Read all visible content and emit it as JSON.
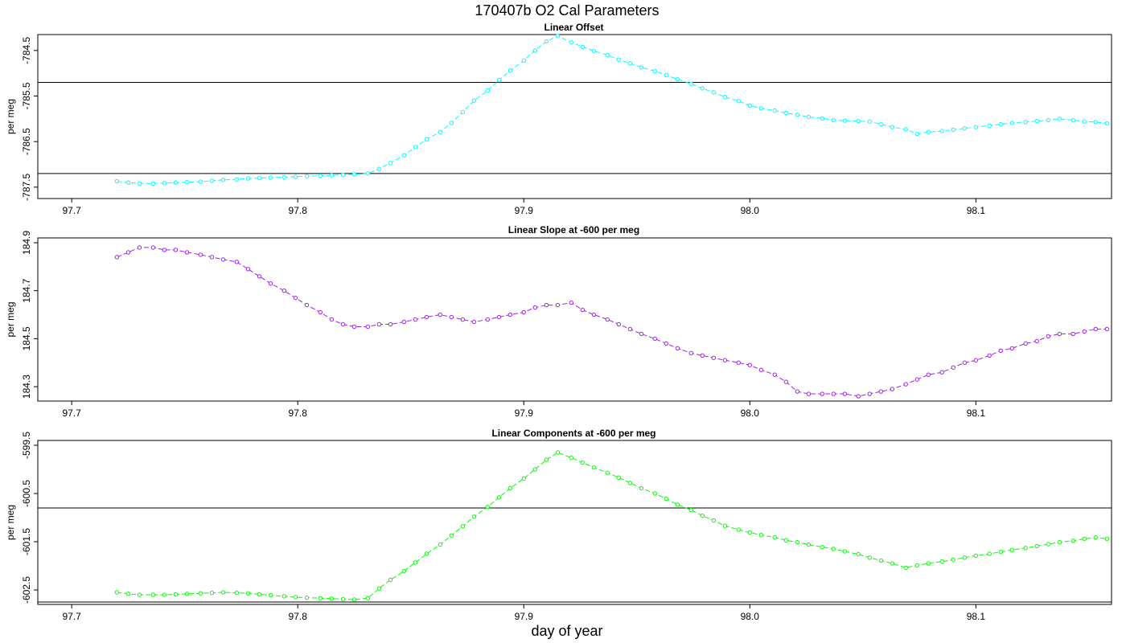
{
  "figure": {
    "title": "170407b   O2 Cal Parameters",
    "xlabel": "day of year"
  },
  "chart_data": [
    {
      "type": "line",
      "title": "Linear Offset",
      "xlabel": "",
      "ylabel": "per meg",
      "xlim": [
        97.685,
        98.16
      ],
      "ylim": [
        -787.75,
        -784.15
      ],
      "xticks": [
        97.7,
        97.8,
        97.9,
        98.0,
        98.1
      ],
      "xtick_labels": [
        "97.7",
        "97.8",
        "97.9",
        "98.0",
        "98.1"
      ],
      "yticks": [
        -784.5,
        -785.5,
        -786.5,
        -787.5
      ],
      "ytick_labels": [
        "-784.5",
        "-785.5",
        "-786.5",
        "-787.5"
      ],
      "hlines": [
        -785.2,
        -787.2
      ],
      "color": "#00ffff",
      "series": [
        {
          "x": [
            97.72,
            97.725,
            97.73,
            97.736,
            97.741,
            97.746,
            97.751,
            97.757,
            97.762,
            97.767,
            97.773,
            97.778,
            97.783,
            97.788,
            97.794,
            97.799,
            97.804,
            97.81,
            97.815,
            97.82,
            97.825,
            97.831,
            97.836,
            97.841,
            97.847,
            97.852,
            97.857,
            97.863,
            97.868,
            97.873,
            97.878,
            97.884,
            97.889,
            97.894,
            97.9,
            97.905,
            97.91,
            97.915,
            97.921,
            97.926,
            97.931,
            97.937,
            97.942,
            97.947,
            97.952,
            97.958,
            97.963,
            97.968,
            97.974,
            97.979,
            97.984,
            97.989,
            97.995,
            98.0,
            98.005,
            98.011,
            98.016,
            98.021,
            98.026,
            98.032,
            98.037,
            98.042,
            98.048,
            98.053,
            98.058,
            98.063,
            98.069,
            98.074,
            98.079,
            98.085,
            98.09,
            98.095,
            98.1,
            98.106,
            98.111,
            98.116,
            98.122,
            98.127,
            98.132,
            98.137,
            98.143,
            98.148,
            98.153,
            98.158
          ],
          "y": [
            -787.37,
            -787.4,
            -787.42,
            -787.42,
            -787.41,
            -787.4,
            -787.39,
            -787.38,
            -787.36,
            -787.34,
            -787.33,
            -787.31,
            -787.3,
            -787.29,
            -787.28,
            -787.27,
            -787.26,
            -787.25,
            -787.24,
            -787.23,
            -787.22,
            -787.2,
            -787.1,
            -786.97,
            -786.8,
            -786.62,
            -786.45,
            -786.29,
            -786.09,
            -785.85,
            -785.6,
            -785.38,
            -785.15,
            -784.94,
            -784.72,
            -784.5,
            -784.3,
            -784.18,
            -784.32,
            -784.42,
            -784.51,
            -784.6,
            -784.7,
            -784.78,
            -784.87,
            -784.95,
            -785.04,
            -785.13,
            -785.23,
            -785.33,
            -785.42,
            -785.52,
            -785.61,
            -785.71,
            -785.77,
            -785.82,
            -785.87,
            -785.91,
            -785.96,
            -785.99,
            -786.03,
            -786.04,
            -786.05,
            -786.06,
            -786.12,
            -786.18,
            -786.23,
            -786.33,
            -786.29,
            -786.27,
            -786.24,
            -786.21,
            -786.18,
            -786.15,
            -786.12,
            -786.09,
            -786.07,
            -786.05,
            -786.03,
            -786.0,
            -786.03,
            -786.06,
            -786.07,
            -786.1
          ]
        }
      ]
    },
    {
      "type": "line",
      "title": "Linear Slope at -600 per meg",
      "xlabel": "",
      "ylabel": "per meg",
      "xlim": [
        97.685,
        98.16
      ],
      "ylim": [
        184.24,
        184.92
      ],
      "xticks": [
        97.7,
        97.8,
        97.9,
        98.0,
        98.1
      ],
      "xtick_labels": [
        "97.7",
        "97.8",
        "97.9",
        "98.0",
        "98.1"
      ],
      "yticks": [
        184.3,
        184.5,
        184.7,
        184.9
      ],
      "ytick_labels": [
        "184.3",
        "184.5",
        "184.7",
        "184.9"
      ],
      "hlines": [],
      "color": "#a020f0",
      "series": [
        {
          "x": [
            97.72,
            97.725,
            97.73,
            97.736,
            97.741,
            97.746,
            97.751,
            97.757,
            97.762,
            97.767,
            97.773,
            97.778,
            97.783,
            97.788,
            97.794,
            97.799,
            97.804,
            97.81,
            97.815,
            97.82,
            97.825,
            97.831,
            97.836,
            97.841,
            97.847,
            97.852,
            97.857,
            97.863,
            97.868,
            97.873,
            97.878,
            97.884,
            97.889,
            97.894,
            97.9,
            97.905,
            97.91,
            97.915,
            97.921,
            97.926,
            97.931,
            97.937,
            97.942,
            97.947,
            97.952,
            97.958,
            97.963,
            97.968,
            97.974,
            97.979,
            97.984,
            97.989,
            97.995,
            98.0,
            98.005,
            98.011,
            98.016,
            98.021,
            98.026,
            98.032,
            98.037,
            98.042,
            98.048,
            98.053,
            98.058,
            98.063,
            98.069,
            98.074,
            98.079,
            98.085,
            98.09,
            98.095,
            98.1,
            98.106,
            98.111,
            98.116,
            98.122,
            98.127,
            98.132,
            98.137,
            98.143,
            98.148,
            98.153,
            98.158
          ],
          "y": [
            184.84,
            184.86,
            184.88,
            184.88,
            184.87,
            184.87,
            184.86,
            184.85,
            184.84,
            184.83,
            184.82,
            184.79,
            184.76,
            184.73,
            184.7,
            184.67,
            184.64,
            184.61,
            184.58,
            184.56,
            184.55,
            184.55,
            184.56,
            184.56,
            184.57,
            184.58,
            184.59,
            184.6,
            184.59,
            184.58,
            184.57,
            184.58,
            184.59,
            184.6,
            184.61,
            184.63,
            184.64,
            184.64,
            184.65,
            184.62,
            184.6,
            184.58,
            184.56,
            184.54,
            184.52,
            184.5,
            184.48,
            184.46,
            184.44,
            184.43,
            184.42,
            184.41,
            184.4,
            184.39,
            184.37,
            184.35,
            184.32,
            184.28,
            184.27,
            184.27,
            184.27,
            184.27,
            184.26,
            184.27,
            184.28,
            184.29,
            184.31,
            184.33,
            184.35,
            184.36,
            184.38,
            184.4,
            184.41,
            184.43,
            184.45,
            184.46,
            184.48,
            184.49,
            184.51,
            184.52,
            184.52,
            184.53,
            184.54,
            184.54
          ]
        }
      ]
    },
    {
      "type": "line",
      "title": "Linear Components at -600 per meg",
      "xlabel": "",
      "ylabel": "per meg",
      "xlim": [
        97.685,
        98.16
      ],
      "ylim": [
        -602.8,
        -599.4
      ],
      "xticks": [
        97.7,
        97.8,
        97.9,
        98.0,
        98.1
      ],
      "xtick_labels": [
        "97.7",
        "97.8",
        "97.9",
        "98.0",
        "98.1"
      ],
      "yticks": [
        -599.5,
        -600.5,
        -601.5,
        -602.5
      ],
      "ytick_labels": [
        "-599.5",
        "-600.5",
        "-601.5",
        "-602.5"
      ],
      "hlines": [
        -600.8,
        -602.75
      ],
      "color": "#00ff00",
      "series": [
        {
          "x": [
            97.72,
            97.725,
            97.73,
            97.736,
            97.741,
            97.746,
            97.751,
            97.757,
            97.762,
            97.767,
            97.773,
            97.778,
            97.783,
            97.788,
            97.794,
            97.799,
            97.804,
            97.81,
            97.815,
            97.82,
            97.825,
            97.831,
            97.836,
            97.841,
            97.847,
            97.852,
            97.857,
            97.863,
            97.868,
            97.873,
            97.878,
            97.884,
            97.889,
            97.894,
            97.9,
            97.905,
            97.91,
            97.915,
            97.921,
            97.926,
            97.931,
            97.937,
            97.942,
            97.947,
            97.952,
            97.958,
            97.963,
            97.968,
            97.974,
            97.979,
            97.984,
            97.989,
            97.995,
            98.0,
            98.005,
            98.011,
            98.016,
            98.021,
            98.026,
            98.032,
            98.037,
            98.042,
            98.048,
            98.053,
            98.058,
            98.063,
            98.069,
            98.074,
            98.079,
            98.085,
            98.09,
            98.095,
            98.1,
            98.106,
            98.111,
            98.116,
            98.122,
            98.127,
            98.132,
            98.137,
            98.143,
            98.148,
            98.153,
            98.158
          ],
          "y": [
            -602.55,
            -602.58,
            -602.6,
            -602.6,
            -602.6,
            -602.59,
            -602.58,
            -602.57,
            -602.56,
            -602.55,
            -602.56,
            -602.57,
            -602.59,
            -602.61,
            -602.63,
            -602.65,
            -602.66,
            -602.67,
            -602.68,
            -602.69,
            -602.7,
            -602.67,
            -602.47,
            -602.29,
            -602.11,
            -601.93,
            -601.75,
            -601.56,
            -601.37,
            -601.18,
            -600.98,
            -600.78,
            -600.58,
            -600.39,
            -600.19,
            -600.0,
            -599.8,
            -599.65,
            -599.76,
            -599.86,
            -599.96,
            -600.07,
            -600.17,
            -600.28,
            -600.39,
            -600.5,
            -600.61,
            -600.73,
            -600.84,
            -600.96,
            -601.06,
            -601.17,
            -601.25,
            -601.31,
            -601.36,
            -601.41,
            -601.47,
            -601.51,
            -601.56,
            -601.61,
            -601.65,
            -601.7,
            -601.76,
            -601.83,
            -601.89,
            -601.95,
            -602.04,
            -601.99,
            -601.95,
            -601.91,
            -601.87,
            -601.83,
            -601.79,
            -601.75,
            -601.71,
            -601.67,
            -601.63,
            -601.59,
            -601.55,
            -601.51,
            -601.48,
            -601.44,
            -601.41,
            -601.44
          ]
        }
      ]
    }
  ]
}
